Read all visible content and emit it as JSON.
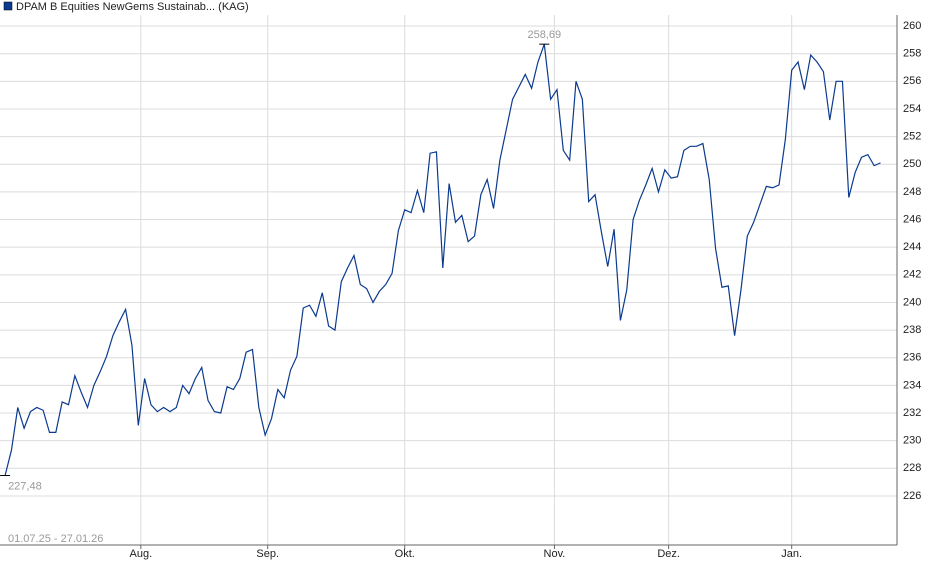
{
  "chart_data": {
    "type": "line",
    "title": "DPAM B Equities NewGems Sustainab... (KAG)",
    "date_range": "01.07.25 - 27.01.26",
    "series": [
      {
        "name": "DPAM B Equities NewGems Sustainab... (KAG)",
        "color": "#0b3a8f",
        "values": [
          227.48,
          229.3,
          232.4,
          230.9,
          232.1,
          232.4,
          232.2,
          230.6,
          230.6,
          232.8,
          232.6,
          234.7,
          233.5,
          232.4,
          234.0,
          235.0,
          236.1,
          237.6,
          238.6,
          239.5,
          236.9,
          231.1,
          234.5,
          232.6,
          232.1,
          232.4,
          232.1,
          232.4,
          234.0,
          233.4,
          234.5,
          235.3,
          232.9,
          232.1,
          232.0,
          233.9,
          233.7,
          234.5,
          236.4,
          236.6,
          232.4,
          230.4,
          231.6,
          233.7,
          233.1,
          235.1,
          236.1,
          239.6,
          239.8,
          239.0,
          240.7,
          238.3,
          238.0,
          241.5,
          242.5,
          243.4,
          241.3,
          241.0,
          240.0,
          240.8,
          241.3,
          242.1,
          245.2,
          246.7,
          246.5,
          248.1,
          246.5,
          250.8,
          250.9,
          242.5,
          248.6,
          245.8,
          246.3,
          244.4,
          244.8,
          247.8,
          248.9,
          246.8,
          250.3,
          252.5,
          254.7,
          255.6,
          256.5,
          255.5,
          257.4,
          258.69,
          254.7,
          255.4,
          251.0,
          250.3,
          256.0,
          254.7,
          247.3,
          247.8,
          245.1,
          242.6,
          245.3,
          238.7,
          240.9,
          246.0,
          247.4,
          248.5,
          249.7,
          248.0,
          249.6,
          249.0,
          249.1,
          251.0,
          251.3,
          251.3,
          251.5,
          248.9,
          243.9,
          241.1,
          241.2,
          237.6,
          240.9,
          244.8,
          245.8,
          247.1,
          248.4,
          248.3,
          248.5,
          251.8,
          256.8,
          257.4,
          255.4,
          257.9,
          257.4,
          256.7,
          253.2,
          256.0,
          256.0,
          247.6,
          249.4,
          250.5,
          250.7,
          249.9,
          250.1
        ]
      }
    ],
    "annotations": [
      {
        "label": "258,69",
        "value": 258.69
      },
      {
        "label": "227,48",
        "value": 227.48
      }
    ],
    "xlim": [
      -0.8,
      140.6
    ],
    "xticks": [
      {
        "value": 21.4,
        "label": "Aug."
      },
      {
        "value": 41.4,
        "label": "Sep."
      },
      {
        "value": 63,
        "label": "Okt."
      },
      {
        "value": 86.6,
        "label": "Nov."
      },
      {
        "value": 104.6,
        "label": "Dez."
      },
      {
        "value": 124,
        "label": "Jan."
      }
    ],
    "ylim": [
      222.45,
      260.8
    ],
    "yticks": [
      226,
      228,
      230,
      232,
      234,
      236,
      238,
      240,
      242,
      244,
      246,
      248,
      250,
      252,
      254,
      256,
      258,
      260
    ],
    "grid": true
  }
}
